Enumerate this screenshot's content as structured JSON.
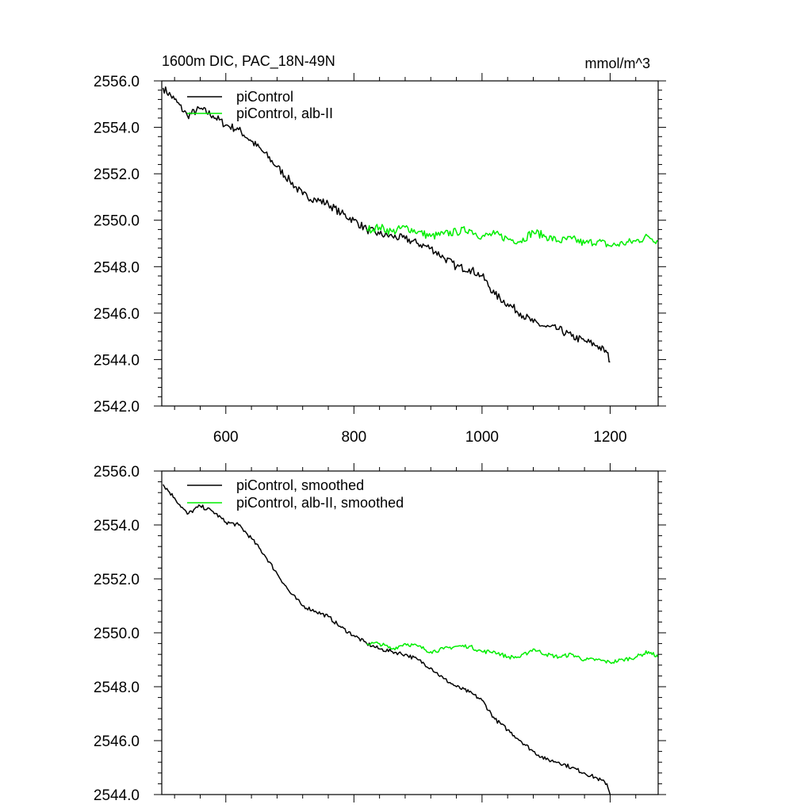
{
  "chart_data": [
    {
      "type": "line",
      "title": "1600m DIC, PAC_18N-49N",
      "units": "mmol/m^3",
      "xlim": [
        500,
        1275
      ],
      "ylim": [
        2542,
        2556
      ],
      "xticks": [
        "600",
        "800",
        "1000",
        "1200"
      ],
      "yticks": [
        "2542.0",
        "2544.0",
        "2546.0",
        "2548.0",
        "2550.0",
        "2552.0",
        "2554.0",
        "2556.0"
      ],
      "legend_position": "top-left",
      "series": [
        {
          "name": "piControl",
          "color": "#000000",
          "x": [
            502,
            520,
            540,
            560,
            580,
            600,
            620,
            640,
            660,
            680,
            700,
            720,
            740,
            760,
            780,
            800,
            820,
            840,
            860,
            880,
            900,
            920,
            940,
            960,
            980,
            1000,
            1020,
            1040,
            1060,
            1080,
            1100,
            1120,
            1140,
            1160,
            1180,
            1195,
            1200
          ],
          "y": [
            2555.7,
            2555.2,
            2554.5,
            2554.8,
            2554.5,
            2554.1,
            2553.9,
            2553.4,
            2552.9,
            2552.3,
            2551.7,
            2551.1,
            2550.9,
            2550.7,
            2550.3,
            2550.0,
            2549.6,
            2549.4,
            2549.3,
            2549.2,
            2549.0,
            2548.8,
            2548.4,
            2548.0,
            2547.9,
            2547.6,
            2546.8,
            2546.4,
            2546.0,
            2545.6,
            2545.4,
            2545.3,
            2545.0,
            2544.8,
            2544.6,
            2544.3,
            2543.9
          ]
        },
        {
          "name": "piControl, alb-II",
          "color": "#00ee00",
          "x": [
            820,
            840,
            860,
            880,
            900,
            920,
            940,
            960,
            980,
            1000,
            1020,
            1040,
            1060,
            1080,
            1100,
            1120,
            1140,
            1160,
            1180,
            1200,
            1220,
            1240,
            1260,
            1275
          ],
          "y": [
            2549.6,
            2549.7,
            2549.5,
            2549.7,
            2549.5,
            2549.3,
            2549.4,
            2549.5,
            2549.6,
            2549.3,
            2549.4,
            2549.2,
            2549.1,
            2549.5,
            2549.3,
            2549.1,
            2549.2,
            2549.0,
            2549.1,
            2548.9,
            2549.0,
            2549.1,
            2549.3,
            2549.1
          ]
        }
      ]
    },
    {
      "type": "line",
      "xlim": [
        500,
        1275
      ],
      "ylim": [
        2544,
        2556
      ],
      "xticks": [],
      "yticks": [
        "2544.0",
        "2546.0",
        "2548.0",
        "2550.0",
        "2552.0",
        "2554.0",
        "2556.0"
      ],
      "legend_position": "top-left",
      "series": [
        {
          "name": "piControl, smoothed",
          "color": "#000000",
          "x": [
            502,
            520,
            540,
            560,
            580,
            600,
            620,
            640,
            660,
            680,
            700,
            720,
            740,
            760,
            780,
            800,
            820,
            840,
            860,
            880,
            900,
            920,
            940,
            960,
            980,
            1000,
            1020,
            1040,
            1060,
            1080,
            1100,
            1120,
            1140,
            1160,
            1180,
            1195,
            1200
          ],
          "y": [
            2555.5,
            2555.0,
            2554.4,
            2554.7,
            2554.5,
            2554.1,
            2554.0,
            2553.5,
            2552.9,
            2552.2,
            2551.5,
            2551.0,
            2550.8,
            2550.6,
            2550.2,
            2549.9,
            2549.6,
            2549.4,
            2549.3,
            2549.2,
            2549.0,
            2548.7,
            2548.3,
            2548.0,
            2547.8,
            2547.5,
            2546.8,
            2546.4,
            2546.0,
            2545.6,
            2545.3,
            2545.2,
            2545.0,
            2544.8,
            2544.6,
            2544.4,
            2544.0
          ]
        },
        {
          "name": "piControl, alb-II, smoothed",
          "color": "#00ee00",
          "x": [
            820,
            840,
            860,
            880,
            900,
            920,
            940,
            960,
            980,
            1000,
            1020,
            1040,
            1060,
            1080,
            1100,
            1120,
            1140,
            1160,
            1180,
            1200,
            1220,
            1240,
            1260,
            1275
          ],
          "y": [
            2549.6,
            2549.6,
            2549.4,
            2549.6,
            2549.5,
            2549.3,
            2549.4,
            2549.5,
            2549.5,
            2549.3,
            2549.3,
            2549.1,
            2549.1,
            2549.4,
            2549.2,
            2549.1,
            2549.2,
            2549.0,
            2549.0,
            2548.9,
            2549.0,
            2549.1,
            2549.3,
            2549.1
          ]
        }
      ]
    }
  ]
}
